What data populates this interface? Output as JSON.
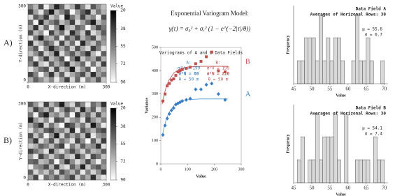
{
  "chart_data": [
    {
      "type": "heatmap",
      "panel_label": "A)",
      "xlabel": "X-direction (m)",
      "ylabel": "Y-direction (m)",
      "xlim": [
        0,
        300
      ],
      "ylim": [
        0,
        300
      ],
      "xticks": [
        0,
        300
      ],
      "yticks": [
        0,
        300
      ],
      "colorbar_label": "Value",
      "zlim": [
        20,
        90
      ],
      "zticks": [
        20,
        38,
        55,
        72,
        90
      ],
      "z": [
        [
          55,
          70,
          40,
          85,
          62,
          30,
          48,
          77,
          66,
          35,
          58,
          81,
          44,
          60,
          72
        ],
        [
          38,
          64,
          82,
          50,
          27,
          69,
          56,
          41,
          88,
          63,
          47,
          33,
          75,
          52,
          68
        ],
        [
          79,
          45,
          58,
          36,
          74,
          61,
          84,
          29,
          53,
          70,
          39,
          66,
          57,
          86,
          42
        ],
        [
          50,
          87,
          31,
          67,
          55,
          43,
          72,
          60,
          37,
          81,
          64,
          48,
          28,
          71,
          59
        ],
        [
          66,
          34,
          76,
          49,
          83,
          58,
          25,
          68,
          74,
          46,
          55,
          89,
          62,
          40,
          53
        ],
        [
          42,
          71,
          60,
          88,
          39,
          65,
          51,
          79,
          33,
          57,
          73,
          36,
          80,
          67,
          45
        ],
        [
          84,
          52,
          28,
          63,
          70,
          47,
          86,
          44,
          61,
          38,
          69,
          54,
          41,
          76,
          58
        ],
        [
          35,
          78,
          67,
          45,
          56,
          82,
          39,
          71,
          50,
          85,
          31,
          62,
          73,
          49,
          64
        ],
        [
          61,
          44,
          85,
          58,
          32,
          54,
          67,
          48,
          77,
          42,
          66,
          79,
          37,
          55,
          81
        ],
        [
          73,
          59,
          40,
          76,
          64,
          29,
          80,
          57,
          45,
          68,
          53,
          34,
          70,
          86,
          46
        ],
        [
          48,
          83,
          62,
          37,
          71,
          60,
          43,
          89,
          56,
          30,
          75,
          58,
          65,
          41,
          69
        ],
        [
          57,
          36,
          74,
          82,
          47,
          68,
          55,
          34,
          72,
          63,
          49,
          84,
          52,
          77,
          38
        ],
        [
          82,
          65,
          51,
          43,
          79,
          40,
          74,
          62,
          27,
          78,
          60,
          45,
          88,
          59,
          70
        ],
        [
          39,
          56,
          87,
          61,
          35,
          73,
          46,
          81,
          66,
          54,
          41,
          71,
          33,
          64,
          52
        ],
        [
          68,
          47,
          59,
          72,
          58,
          85,
          63,
          38,
          79,
          49,
          86,
          57,
          67,
          44,
          75
        ]
      ]
    },
    {
      "type": "heatmap",
      "panel_label": "B)",
      "xlabel": "X-direction (m)",
      "ylabel": "Y-direction (m)",
      "xlim": [
        0,
        300
      ],
      "ylim": [
        0,
        300
      ],
      "xticks": [
        0,
        300
      ],
      "yticks": [
        0,
        300
      ],
      "colorbar_label": "Value",
      "zlim": [
        20,
        90
      ],
      "zticks": [
        20,
        38,
        55,
        72,
        90
      ],
      "z": [
        [
          45,
          62,
          81,
          37,
          70,
          54,
          28,
          66,
          79,
          43,
          58,
          85,
          50,
          63,
          34
        ],
        [
          72,
          38,
          56,
          69,
          48,
          83,
          61,
          40,
          55,
          77,
          31,
          64,
          46,
          80,
          59
        ],
        [
          53,
          86,
          44,
          29,
          65,
          57,
          74,
          52,
          88,
          35,
          67,
          49,
          73,
          42,
          68
        ],
        [
          30,
          61,
          75,
          58,
          84,
          41,
          47,
          79,
          63,
          56,
          82,
          38,
          60,
          71,
          54
        ],
        [
          66,
          49,
          33,
          77,
          52,
          70,
          89,
          36,
          45,
          68,
          53,
          76,
          27,
          57,
          84
        ],
        [
          81,
          57,
          68,
          46,
          39,
          62,
          55,
          73,
          31,
          85,
          44,
          59,
          69,
          48,
          40
        ],
        [
          42,
          74,
          51,
          87,
          60,
          28,
          78,
          47,
          66,
          51,
          71,
          35,
          83,
          62,
          56
        ],
        [
          59,
          35,
          80,
          63,
          43,
          76,
          52,
          64,
          82,
          39,
          60,
          88,
          47,
          74,
          37
        ],
        [
          76,
          68,
          47,
          55,
          71,
          49,
          37,
          86,
          54,
          72,
          45,
          63,
          58,
          33,
          81
        ],
        [
          38,
          52,
          64,
          82,
          34,
          67,
          80,
          58,
          41,
          61,
          78,
          50,
          70,
          65,
          46
        ],
        [
          63,
          84,
          39,
          58,
          75,
          56,
          44,
          69,
          77,
          33,
          57,
          82,
          41,
          52,
          73
        ],
        [
          50,
          45,
          72,
          66,
          48,
          88,
          61,
          35,
          59,
          80,
          67,
          40,
          64,
          86,
          55
        ],
        [
          85,
          60,
          55,
          41,
          69,
          37,
          73,
          82,
          46,
          64,
          29,
          75,
          53,
          44,
          62
        ],
        [
          47,
          79,
          62,
          74,
          53,
          81,
          42,
          57,
          70,
          48,
          84,
          56,
          78,
          60,
          36
        ],
        [
          64,
          40,
          87,
          50,
          61,
          46,
          68,
          54,
          39,
          76,
          52,
          67,
          34,
          71,
          83
        ]
      ]
    },
    {
      "type": "scatter",
      "model_title": "Exponential Variogram Model:",
      "model_formula": "γ(τ) = σ₀² + σᵥ² (1 − e^(−2|τ|/θ))",
      "title": "Variograms of A and B Data Fields",
      "xlabel": "Value",
      "ylabel": "Variance",
      "xlim": [
        0,
        300
      ],
      "ylim": [
        0,
        500
      ],
      "xticks": [
        0,
        100,
        200,
        300
      ],
      "yticks": [
        0,
        100,
        200,
        300,
        400,
        500
      ],
      "series": [
        {
          "name": "A",
          "color": "#3b7dc4",
          "marker": "diamond",
          "x": [
            8,
            16,
            24,
            32,
            40,
            48,
            56,
            64,
            72,
            80,
            95,
            110,
            130,
            150,
            170,
            190,
            215,
            240
          ],
          "values": [
            125,
            165,
            195,
            215,
            230,
            240,
            255,
            260,
            265,
            270,
            275,
            280,
            320,
            320,
            340,
            345,
            300,
            275
          ]
        },
        {
          "name": "B",
          "color": "#c0504d",
          "marker": "square",
          "x": [
            8,
            16,
            24,
            32,
            40,
            48,
            56,
            64,
            72,
            80,
            95,
            110,
            130,
            150,
            170,
            190,
            215,
            240
          ],
          "values": [
            270,
            300,
            335,
            345,
            360,
            365,
            380,
            395,
            400,
            405,
            410,
            415,
            430,
            440,
            460,
            480,
            400,
            395
          ]
        }
      ],
      "fits": [
        {
          "color": "#5b9bd5",
          "x": [
            5,
            10,
            20,
            30,
            50,
            75,
            100,
            150,
            250
          ],
          "values": [
            116,
            146,
            190,
            219,
            252,
            269,
            276,
            279,
            279
          ]
        },
        {
          "color": "#c0504d",
          "x": [
            5,
            10,
            20,
            30,
            50,
            75,
            100,
            150,
            250
          ],
          "values": [
            256,
            286,
            330,
            359,
            392,
            409,
            416,
            419,
            419
          ]
        }
      ],
      "annotations": [
        {
          "color": "#3b7dc4",
          "lines": [
            "A:",
            "σ²V = 199",
            "σ²N = 80",
            "θ = 50 m"
          ]
        },
        {
          "color": "#c0504d",
          "lines": [
            "B:",
            "σ²V = 199",
            "σ²N = 220",
            "θ = 50 m"
          ]
        }
      ]
    },
    {
      "type": "histogram",
      "title": "Data Field A",
      "subtitle": "Averages of Horizonal Rows: 30",
      "stats": [
        "μ = 55.6",
        "σ = 6.7"
      ],
      "xlabel": "Value",
      "ylabel": "Frequency",
      "xlim": [
        45,
        71
      ],
      "ylim": [
        0,
        3.4
      ],
      "xticks": [
        45,
        50,
        55,
        60,
        65,
        70
      ],
      "bins": [
        45,
        46,
        47,
        48,
        49,
        50,
        51,
        52,
        53,
        54,
        55,
        56,
        57,
        58,
        59,
        60,
        61,
        62,
        63,
        64,
        65,
        66,
        67,
        68,
        69,
        70
      ],
      "counts": [
        0,
        1,
        1,
        2,
        2,
        2,
        1,
        3,
        1,
        2,
        1,
        2,
        2,
        1,
        0,
        0,
        1,
        3,
        1,
        1,
        2,
        1,
        0,
        0,
        1
      ],
      "color": "#d9d9d9"
    },
    {
      "type": "histogram",
      "title": "Data Field B",
      "subtitle": "Averages of Horizonal Rows: 30",
      "stats": [
        "μ = 54.1",
        "σ = 7.4"
      ],
      "xlabel": "Value",
      "ylabel": "Frequency",
      "xlim": [
        45,
        71
      ],
      "ylim": [
        0,
        3.4
      ],
      "xticks": [
        45,
        50,
        55,
        60,
        65,
        70
      ],
      "bins": [
        45,
        46,
        47,
        48,
        49,
        50,
        51,
        52,
        53,
        54,
        55,
        56,
        57,
        58,
        59,
        60,
        61,
        62,
        63,
        64,
        65,
        66,
        67,
        68,
        69,
        70
      ],
      "counts": [
        0,
        1,
        2,
        0,
        1,
        1,
        3,
        1,
        2,
        2,
        2,
        3,
        1,
        0,
        3,
        0,
        0,
        1,
        1,
        1,
        1,
        0,
        2,
        1,
        1
      ],
      "color": "#d9d9d9"
    }
  ]
}
